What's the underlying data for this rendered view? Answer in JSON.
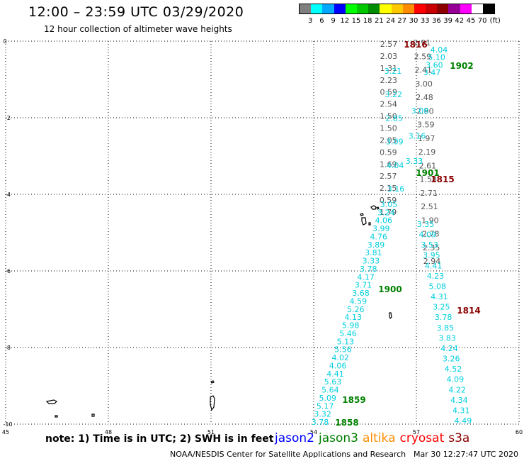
{
  "header": {
    "title": "12:00 – 23:59 UTC 03/29/2020",
    "subtitle": "12 hour collection of altimeter wave heights"
  },
  "legend": {
    "unit": "(ft)",
    "colors": [
      "#7f7f7f",
      "#00ffff",
      "#00a8ff",
      "#0000ff",
      "#00ff00",
      "#00c800",
      "#008c00",
      "#ffff00",
      "#ffc800",
      "#ff8c00",
      "#ff0000",
      "#c80000",
      "#8c0000",
      "#960096",
      "#ff00ff",
      "#ffffff",
      "#000000"
    ],
    "labels": [
      "3",
      "6",
      "9",
      "12",
      "15",
      "18",
      "21",
      "24",
      "27",
      "30",
      "33",
      "36",
      "39",
      "42",
      "45",
      "70"
    ]
  },
  "map": {
    "lon_labels": [
      "45",
      "48",
      "51",
      "54",
      "57",
      "60"
    ],
    "lat_labels": [
      "0",
      "-2",
      "-4",
      "-6",
      "-8",
      "-10"
    ],
    "colors": {
      "jason2": "#0000ff",
      "jason3": "#008000",
      "altika": "#ff8c00",
      "cryosat": "#ff0000",
      "s3a": "#8b0000",
      "cyan": "#00cfdf",
      "gray": "#555555"
    },
    "time_labels": [
      {
        "text": "1816",
        "sat": "s3a"
      },
      {
        "text": "1902",
        "sat": "jason3"
      },
      {
        "text": "1901",
        "sat": "jason3"
      },
      {
        "text": "1815",
        "sat": "s3a"
      },
      {
        "text": "1900",
        "sat": "jason3"
      },
      {
        "text": "1814",
        "sat": "s3a"
      },
      {
        "text": "1859",
        "sat": "jason3"
      },
      {
        "text": "1858",
        "sat": "jason3"
      }
    ],
    "track_left": {
      "cyan": [
        "3.21",
        "3.22",
        "2.85",
        "3.09",
        "4.04",
        "3.16",
        "3.05",
        "3.24",
        "4.06",
        "3.99",
        "4.76",
        "3.89",
        "3.81",
        "3.33",
        "3.78",
        "4.17",
        "3.71",
        "3.68",
        "4.59",
        "5.26",
        "4.13",
        "5.98",
        "5.46",
        "5.13",
        "5.56",
        "4.02",
        "4.06",
        "4.41",
        "5.63",
        "5.64",
        "5.09",
        "5.17",
        "3.32",
        "3.78"
      ],
      "gray": [
        "2.57",
        "2.03",
        "1.31",
        "2.23",
        "0.59",
        "2.54",
        "1.50",
        "1.50",
        "2.05",
        "0.59",
        "1.69",
        "2.57",
        "2.15",
        "0.59",
        "1.79"
      ]
    },
    "track_right": {
      "cyan": [
        "4.04",
        "5.10",
        "3.60",
        "3.47",
        "3.08",
        "3.16",
        "3.33",
        "3.35",
        "4.09",
        "3.53",
        "3.95",
        "4.41",
        "4.23",
        "5.08",
        "4.31",
        "3.25",
        "3.78",
        "3.85",
        "3.83",
        "4.24",
        "3.26",
        "4.52",
        "4.09",
        "4.22",
        "4.34",
        "4.31",
        "4.49"
      ],
      "gray": [
        "2.91",
        "2.59",
        "2.41",
        "3.00",
        "2.48",
        "2.90",
        "3.59",
        "1.97",
        "2.19",
        "2.61",
        "1.58",
        "2.71",
        "2.51",
        "1.90",
        "2.78",
        "2.35",
        "2.94"
      ]
    }
  },
  "note": "note:  1) Time is in UTC;  2) SWH is in feet",
  "satellites": [
    {
      "name": "jason2",
      "color": "#0000ff"
    },
    {
      "name": "jason3",
      "color": "#008000"
    },
    {
      "name": "altika",
      "color": "#ff8c00"
    },
    {
      "name": "cryosat",
      "color": "#ff0000"
    },
    {
      "name": "s3a",
      "color": "#8b0000"
    }
  ],
  "footer": {
    "credit": "NOAA/NESDIS Center for Satellite Applications and Research",
    "timestamp": "Mar 30 12:27:47 UTC 2020"
  }
}
